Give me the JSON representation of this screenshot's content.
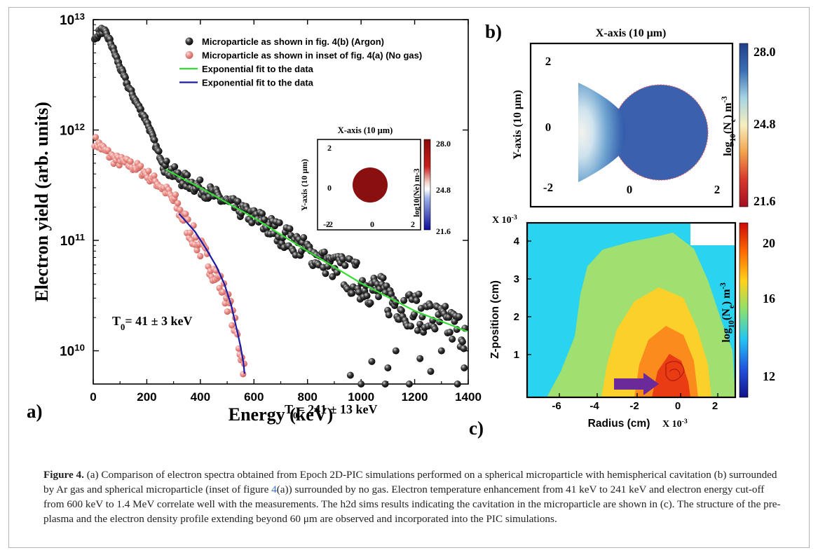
{
  "figure": {
    "caption": {
      "label": "Figure 4.",
      "text_1": " (a) Comparison of electron spectra obtained from Epoch 2D-PIC simulations performed on a spherical microparticle with hemispherical cavitation (b) surrounded by Ar gas and spherical microparticle (inset of figure ",
      "ref": "4",
      "text_2": "(a)) surrounded by no gas. Electron temperature enhancement from 41 keV to 241 keV and electron energy cut-off from 600 keV to 1.4 MeV correlate well with the measurements. The h2d sims results indicating the cavitation in the microparticle are shown in (c). The structure of the pre-plasma and the electron density profile extending beyond 60 μm are observed and incorporated into the PIC simulations."
    },
    "panel_labels": {
      "a": "a)",
      "b": "b)",
      "c": "c)"
    }
  },
  "chart_data": [
    {
      "type": "scatter",
      "panel": "a)",
      "xlabel": "Energy (keV)",
      "ylabel": "Electron yield (arb. units)",
      "xlim": [
        0,
        1400
      ],
      "ylim": [
        5000000000.0,
        10000000000000.0
      ],
      "yscale": "log",
      "x_ticks": [
        "0",
        "200",
        "400",
        "600",
        "800",
        "1000",
        "1200",
        "1400"
      ],
      "y_ticks": [
        {
          "base": "10",
          "exp": "13",
          "value": 10000000000000.0
        },
        {
          "base": "10",
          "exp": "12",
          "value": 1000000000000.0
        },
        {
          "base": "10",
          "exp": "11",
          "value": 100000000000.0
        },
        {
          "base": "10",
          "exp": "10",
          "value": 10000000000.0
        }
      ],
      "legend_position": "top-right",
      "series": [
        {
          "name": "Microparticle as shown in fig. 4(b) (Argon)",
          "marker": "sphere",
          "color": "#1a1a1a",
          "anchors": [
            [
              5,
              6500000000000.0
            ],
            [
              20,
              7600000000000.0
            ],
            [
              30,
              8000000000000.0
            ],
            [
              45,
              7600000000000.0
            ],
            [
              60,
              6600000000000.0
            ],
            [
              80,
              5000000000000.0
            ],
            [
              100,
              3700000000000.0
            ],
            [
              130,
              2500000000000.0
            ],
            [
              160,
              1800000000000.0
            ],
            [
              200,
              1200000000000.0
            ],
            [
              240,
              650000000000.0
            ],
            [
              270,
              460000000000.0
            ],
            [
              320,
              370000000000.0
            ],
            [
              400,
              300000000000.0
            ],
            [
              500,
              220000000000.0
            ],
            [
              600,
              160000000000.0
            ],
            [
              700,
              115000000000.0
            ],
            [
              800,
              80000000000.0
            ],
            [
              900,
              56000000000.0
            ],
            [
              1000,
              42000000000.0
            ],
            [
              1100,
              30000000000.0
            ],
            [
              1200,
              23000000000.0
            ],
            [
              1300,
              18000000000.0
            ],
            [
              1390,
              15000000000.0
            ]
          ],
          "outliers": [
            [
              1000,
              5000000000.0
            ],
            [
              1040,
              8000000000.0
            ],
            [
              1090,
              5000000000.0
            ],
            [
              1130,
              10000000000.0
            ],
            [
              1180,
              5000000000.0
            ],
            [
              1220,
              8500000000.0
            ],
            [
              1260,
              6500000000.0
            ],
            [
              1300,
              10000000000.0
            ],
            [
              1360,
              5000000000.0
            ],
            [
              1385,
              7000000000.0
            ],
            [
              960,
              6000000000.0
            ],
            [
              1100,
              7000000000.0
            ]
          ]
        },
        {
          "name": "Microparticle as shown in inset of fig. 4(a) (No gas)",
          "marker": "sphere",
          "color": "#e98a86",
          "anchors": [
            [
              5,
              800000000000.0
            ],
            [
              40,
              660000000000.0
            ],
            [
              80,
              540000000000.0
            ],
            [
              120,
              500000000000.0
            ],
            [
              160,
              460000000000.0
            ],
            [
              200,
              400000000000.0
            ],
            [
              240,
              330000000000.0
            ],
            [
              280,
              270000000000.0
            ],
            [
              320,
              190000000000.0
            ],
            [
              360,
              125000000000.0
            ],
            [
              400,
              85000000000.0
            ],
            [
              440,
              58000000000.0
            ],
            [
              480,
              38000000000.0
            ],
            [
              510,
              25000000000.0
            ],
            [
              530,
              16000000000.0
            ],
            [
              545,
              11000000000.0
            ],
            [
              555,
              8500000000.0
            ],
            [
              565,
              6500000000.0
            ]
          ]
        },
        {
          "name": "Exponential fit to the data",
          "marker": "line",
          "color": "#33dd33",
          "points": [
            [
              270,
              440000000000.0
            ],
            [
              400,
              300000000000.0
            ],
            [
              600,
              160000000000.0
            ],
            [
              800,
              80000000000.0
            ],
            [
              1000,
              41000000000.0
            ],
            [
              1200,
              23000000000.0
            ],
            [
              1395,
              15000000000.0
            ]
          ]
        },
        {
          "name": "Exponential fit to the data",
          "marker": "line",
          "color": "#1a1aa6",
          "points": [
            [
              320,
              175000000000.0
            ],
            [
              380,
              120000000000.0
            ],
            [
              420,
              85000000000.0
            ],
            [
              460,
              58000000000.0
            ],
            [
              490,
              40000000000.0
            ],
            [
              515,
              26000000000.0
            ],
            [
              535,
              16000000000.0
            ],
            [
              550,
              11000000000.0
            ],
            [
              560,
              8000000000.0
            ],
            [
              565,
              6200000000.0
            ]
          ]
        }
      ],
      "annotations": [
        {
          "text_parts": [
            "T",
            "0",
            "= 41 ± 3 keV"
          ]
        },
        {
          "text_parts": [
            "T",
            "0",
            "= 241 ± 13 keV"
          ]
        }
      ],
      "inset": {
        "type": "heatmap",
        "title": "X-axis (10 μm)",
        "ylabel": "Y-axis (10 μm)",
        "x_ticks": [
          "-2",
          "0",
          "2"
        ],
        "y_ticks": [
          "2",
          "0",
          "-2"
        ],
        "colorbar_label": "log10(Ne) m-3",
        "colorbar_ticks": [
          "28.0",
          "24.8",
          "21.6"
        ],
        "fill_color": "#8a0f10"
      }
    },
    {
      "type": "heatmap",
      "panel": "b)",
      "title": "X-axis (10 μm)",
      "ylabel": "Y-axis (10 μm)",
      "x_ticks": [
        "0",
        "2"
      ],
      "y_ticks": [
        "2",
        "0",
        "-2"
      ],
      "colorbar_label_parts": [
        "log",
        "10",
        "(N",
        "e",
        ") m",
        "-3"
      ],
      "colorbar_ticks": [
        "28.0",
        "24.8",
        "21.6"
      ],
      "colorbar_colors": [
        "#22408a",
        "#3b6fb4",
        "#a6d4e4",
        "#f6efbe",
        "#f2a24c",
        "#d7382e",
        "#a50f22"
      ]
    },
    {
      "type": "heatmap",
      "panel": "c)",
      "xlabel": "Radius (cm)",
      "x_multiplier_parts": [
        "X 10",
        "-3"
      ],
      "ylabel": "Z-position (cm)",
      "y_multiplier_parts": [
        "X 10",
        "-3"
      ],
      "x_ticks": [
        "-6",
        "-4",
        "-2",
        "0",
        "2"
      ],
      "y_ticks": [
        "4",
        "3",
        "2",
        "1"
      ],
      "colorbar_label_parts": [
        "log",
        "10",
        "(N",
        "e",
        ") m",
        "-3"
      ],
      "colorbar_ticks": [
        "20",
        "16",
        "12"
      ],
      "levels_colors": [
        "#2ad3f0",
        "#9fe070",
        "#fbd02a",
        "#fb8b1c",
        "#ea3c12"
      ],
      "colorbar_colors": [
        "#cc0a0a",
        "#ff6a00",
        "#ffd21a",
        "#8ce070",
        "#21c6f2",
        "#2255e0",
        "#12128a"
      ]
    }
  ],
  "colors": {
    "argon": "#1a1a1a",
    "no_gas": "#e98a86",
    "fit_green": "#33dd33",
    "fit_blue": "#1a1aa6",
    "arrow": "#6a2a9a"
  }
}
